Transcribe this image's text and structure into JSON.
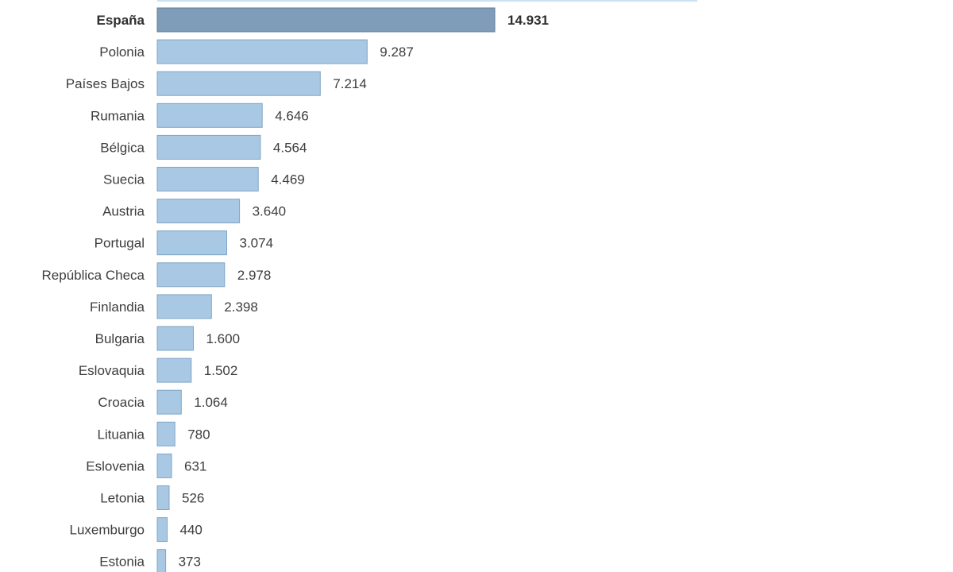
{
  "chart_data": {
    "type": "bar",
    "orientation": "horizontal",
    "title": "",
    "xlabel": "",
    "ylabel": "",
    "grid": false,
    "legend": "none",
    "highlight_category": "España",
    "colors": {
      "bar": "#a9c8e3",
      "bar_border": "#7fa5c6",
      "highlight": "#7f9cb9",
      "highlight_border": "#5f7d99",
      "top_partial": "#c9e1f0",
      "text": "#3d3d3d"
    },
    "categories": [
      "España",
      "Polonia",
      "Países Bajos",
      "Rumania",
      "Bélgica",
      "Suecia",
      "Austria",
      "Portugal",
      "República Checa",
      "Finlandia",
      "Bulgaria",
      "Eslovaquia",
      "Croacia",
      "Lituania",
      "Eslovenia",
      "Letonia",
      "Luxemburgo",
      "Estonia"
    ],
    "values": [
      14931,
      9287,
      7214,
      4646,
      4564,
      4469,
      3640,
      3074,
      2978,
      2398,
      1600,
      1502,
      1064,
      780,
      631,
      526,
      440,
      373
    ],
    "value_labels": [
      "14.931",
      "9.287",
      "7.214",
      "4.646",
      "4.564",
      "4.469",
      "3.640",
      "3.074",
      "2.978",
      "2.398",
      "1.600",
      "1.502",
      "1.064",
      "780",
      "631",
      "526",
      "440",
      "373"
    ]
  }
}
